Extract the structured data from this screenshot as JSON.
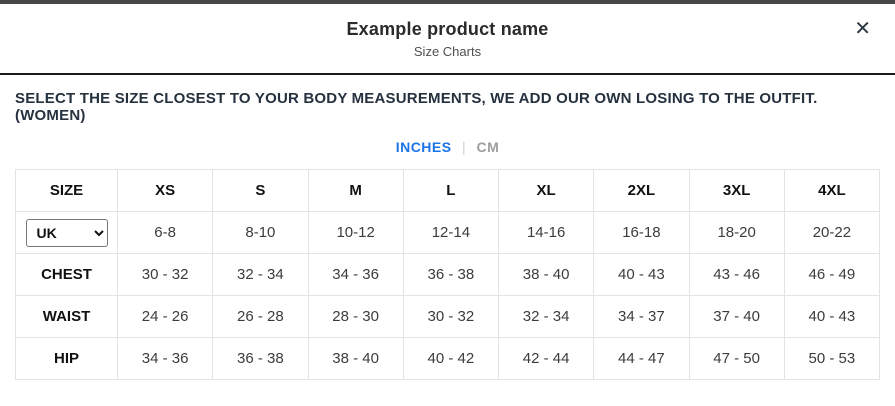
{
  "modal": {
    "title": "Example product name",
    "subtitle": "Size Charts",
    "close_label": "✕"
  },
  "instruction": "SELECT THE SIZE CLOSEST TO YOUR BODY MEASUREMENTS, WE ADD OUR OWN LOSING TO THE OUTFIT. (WOMEN)",
  "unit_toggle": {
    "separator": "|",
    "options": [
      {
        "label": "INCHES",
        "active": true
      },
      {
        "label": "CM",
        "active": false
      }
    ]
  },
  "size_chart": {
    "type": "table",
    "columns": [
      "SIZE",
      "XS",
      "S",
      "M",
      "L",
      "XL",
      "2XL",
      "3XL",
      "4XL"
    ],
    "region_selector": {
      "value": "UK",
      "options": [
        "UK"
      ]
    },
    "rows": [
      {
        "label": "UK",
        "kind": "select",
        "values": [
          "6-8",
          "8-10",
          "10-12",
          "12-14",
          "14-16",
          "16-18",
          "18-20",
          "20-22"
        ]
      },
      {
        "label": "CHEST",
        "kind": "text",
        "values": [
          "30 - 32",
          "32 - 34",
          "34 - 36",
          "36 - 38",
          "38 - 40",
          "40 - 43",
          "43 - 46",
          "46 - 49"
        ]
      },
      {
        "label": "WAIST",
        "kind": "text",
        "values": [
          "24 - 26",
          "26 - 28",
          "28 - 30",
          "30 - 32",
          "32 - 34",
          "34 - 37",
          "37 - 40",
          "40 - 43"
        ]
      },
      {
        "label": "HIP",
        "kind": "text",
        "values": [
          "34 - 36",
          "36 - 38",
          "38 - 40",
          "40 - 42",
          "42 - 44",
          "44 - 47",
          "47 - 50",
          "50 - 53"
        ]
      }
    ]
  },
  "colors": {
    "accent": "#1b74e8",
    "inactive": "#9e9e9e",
    "heading": "#25313f",
    "top_bar": "#474747"
  }
}
